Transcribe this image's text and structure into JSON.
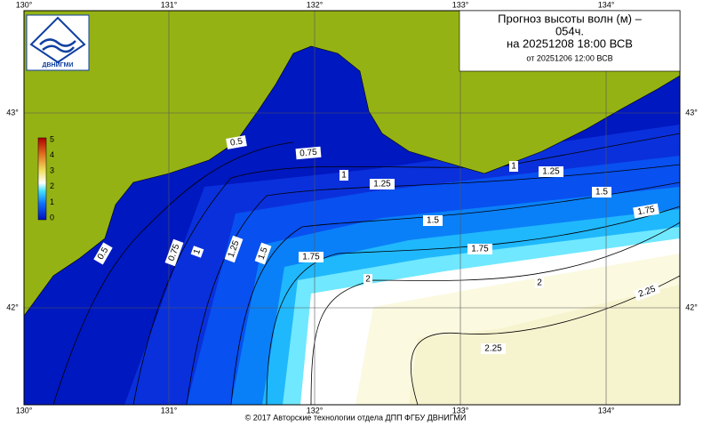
{
  "header": {
    "title_lines": [
      "Прогноз высоты волн (м) –",
      "054ч.",
      "на 20251208 18:00 ВСВ",
      "от 20251206 12:00 ВСВ"
    ]
  },
  "logo": {
    "text": "ДВНИГМИ"
  },
  "axes": {
    "lon_labels": [
      "130°",
      "131°",
      "132°",
      "133°",
      "134°"
    ],
    "lat_labels": [
      "43°",
      "42°"
    ]
  },
  "colorbar": {
    "ticks": [
      5,
      4,
      3,
      2,
      1,
      0
    ]
  },
  "contour_labels": [
    "0.5",
    "0.75",
    "1",
    "1.25",
    "1",
    "1.25",
    "1.5",
    "1.75",
    "1.5",
    "1.75",
    "2",
    "2",
    "2.25",
    "2.25",
    "1.75",
    "1.5",
    "1.25",
    "1",
    "0.75",
    "0.5"
  ],
  "footer": "© 2017 Авторские технологии отдела ДПП ФГБУ ДВНИГМИ"
}
